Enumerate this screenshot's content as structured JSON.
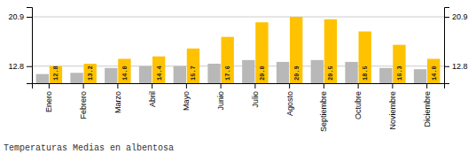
{
  "chart_data": {
    "type": "bar",
    "title": "Temperaturas Medias en albentosa",
    "categories": [
      "Enero",
      "Febrero",
      "Marzo",
      "Abril",
      "Mayo",
      "Junio",
      "Julio",
      "Agosto",
      "Septiembre",
      "Octubre",
      "Noviembre",
      "Diciembre"
    ],
    "series": [
      {
        "color": "#B8B8B8",
        "values": [
          11.5,
          11.7,
          12.5,
          12.8,
          12.8,
          13.2,
          13.8,
          13.5,
          13.8,
          13.5,
          12.5,
          12.3
        ]
      },
      {
        "color": "#FFC200",
        "values": [
          12.8,
          13.2,
          14.0,
          14.4,
          15.7,
          17.6,
          20.0,
          20.9,
          20.5,
          18.5,
          16.3,
          14.0
        ],
        "data_labels": true,
        "value_labels": [
          "12.8",
          "13.2",
          "14.0",
          "14.4",
          "15.7",
          "17.6",
          "20.0",
          "20.9",
          "20.5",
          "18.5",
          "16.3",
          "14.0"
        ]
      }
    ],
    "ylim": [
      10.0,
      22.5
    ],
    "yticks": [
      12.8,
      20.9
    ],
    "y2lim": [
      10.0,
      22.5
    ],
    "y2ticks": [
      12.8,
      20.9
    ],
    "grid": true
  }
}
